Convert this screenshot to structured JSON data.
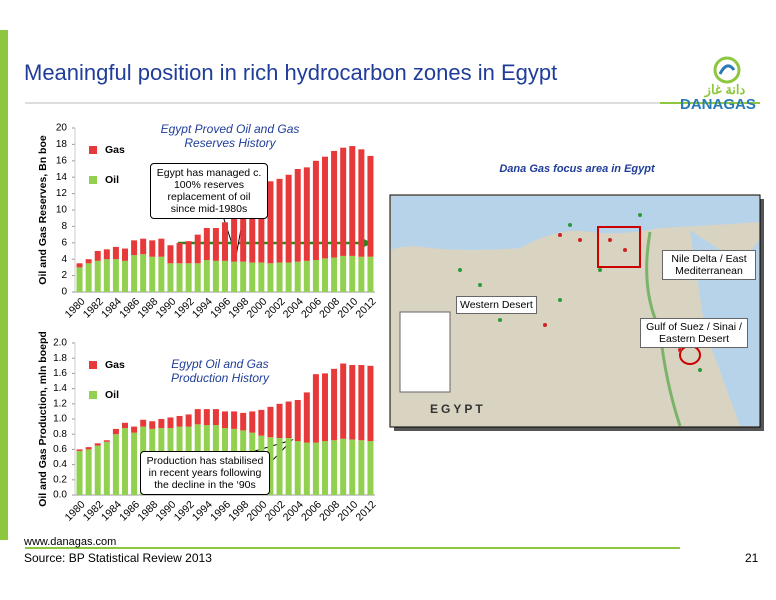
{
  "slide": {
    "title": "Meaningful position in rich hydrocarbon zones in Egypt",
    "logo_arabic": "دانة غاز",
    "logo_text": "DANAGAS",
    "footer_url": "www.danagas.com",
    "source": "Source: BP Statistical Review 2013",
    "page_number": "21",
    "map": {
      "title": "Dana Gas focus area in Egypt",
      "country": "EGYPT",
      "labels": [
        "Nile Delta / East Mediterranean",
        "Western Desert",
        "Gulf of Suez / Sinai / Eastern Desert"
      ]
    }
  },
  "chart_data": [
    {
      "type": "stacked_bar",
      "title": "Egypt Proved Oil and Gas Reserves History",
      "y_label": "Oil and Gas Reserves, Bn boe",
      "annotation": "Egypt has managed c. 100% reserves replacement of oil since mid-1980s",
      "categories": [
        "1980",
        null,
        "1982",
        null,
        "1984",
        null,
        "1986",
        null,
        "1988",
        null,
        "1990",
        null,
        "1992",
        null,
        "1994",
        null,
        "1996",
        null,
        "1998",
        null,
        "2000",
        null,
        "2002",
        null,
        "2004",
        null,
        "2006",
        null,
        "2008",
        null,
        "2010",
        null,
        "2012"
      ],
      "series": [
        {
          "name": "Oil",
          "color": "#92d050",
          "values": [
            3.0,
            3.5,
            3.8,
            4.0,
            4.0,
            3.8,
            4.5,
            4.6,
            4.3,
            4.3,
            3.5,
            3.5,
            3.5,
            3.5,
            3.9,
            3.8,
            3.8,
            3.7,
            3.7,
            3.6,
            3.6,
            3.5,
            3.6,
            3.6,
            3.7,
            3.8,
            3.9,
            4.1,
            4.2,
            4.4,
            4.4,
            4.3,
            4.3
          ]
        },
        {
          "name": "Gas",
          "color": "#e8393a",
          "values": [
            0.5,
            0.5,
            1.2,
            1.2,
            1.5,
            1.5,
            1.8,
            1.9,
            2.0,
            2.2,
            2.2,
            2.5,
            2.7,
            3.5,
            3.9,
            4.0,
            4.7,
            5.3,
            6.3,
            7.9,
            9.2,
            10.0,
            10.2,
            10.7,
            11.3,
            11.4,
            12.1,
            12.4,
            13.0,
            13.2,
            13.4,
            13.1,
            12.3
          ]
        }
      ],
      "legend_order": [
        "Gas",
        "Oil"
      ],
      "ylim": [
        0,
        20
      ],
      "yticks": [
        0,
        2,
        4,
        6,
        8,
        10,
        12,
        14,
        16,
        18,
        20
      ]
    },
    {
      "type": "stacked_bar",
      "title": "Egypt Oil and Gas Production History",
      "y_label": "Oil and Gas Production, mln boepd",
      "annotation": "Production has stabilised in recent years following the decline in the ‘90s",
      "categories": [
        "1980",
        null,
        "1982",
        null,
        "1984",
        null,
        "1986",
        null,
        "1988",
        null,
        "1990",
        null,
        "1992",
        null,
        "1994",
        null,
        "1996",
        null,
        "1998",
        null,
        "2000",
        null,
        "2002",
        null,
        "2004",
        null,
        "2006",
        null,
        "2008",
        null,
        "2010",
        null,
        "2012"
      ],
      "series": [
        {
          "name": "Oil",
          "color": "#92d050",
          "values": [
            0.58,
            0.6,
            0.65,
            0.7,
            0.8,
            0.88,
            0.82,
            0.9,
            0.87,
            0.88,
            0.88,
            0.9,
            0.9,
            0.93,
            0.92,
            0.92,
            0.88,
            0.87,
            0.85,
            0.82,
            0.78,
            0.76,
            0.75,
            0.75,
            0.71,
            0.69,
            0.69,
            0.71,
            0.72,
            0.74,
            0.73,
            0.72,
            0.71
          ]
        },
        {
          "name": "Gas",
          "color": "#e8393a",
          "values": [
            0.02,
            0.03,
            0.03,
            0.02,
            0.07,
            0.07,
            0.08,
            0.09,
            0.1,
            0.12,
            0.14,
            0.14,
            0.16,
            0.2,
            0.21,
            0.21,
            0.22,
            0.23,
            0.23,
            0.28,
            0.34,
            0.4,
            0.45,
            0.48,
            0.54,
            0.66,
            0.9,
            0.89,
            0.94,
            0.99,
            0.98,
            0.99,
            0.99
          ]
        }
      ],
      "legend_order": [
        "Gas",
        "Oil"
      ],
      "ylim": [
        0,
        2
      ],
      "yticks": [
        {
          "value": 0,
          "label": "0.0"
        },
        0.2,
        0.4,
        0.6,
        0.8,
        {
          "value": 1,
          "label": "1.0"
        },
        1.2,
        1.4,
        1.6,
        1.8,
        {
          "value": 2,
          "label": "2.0"
        }
      ]
    }
  ]
}
